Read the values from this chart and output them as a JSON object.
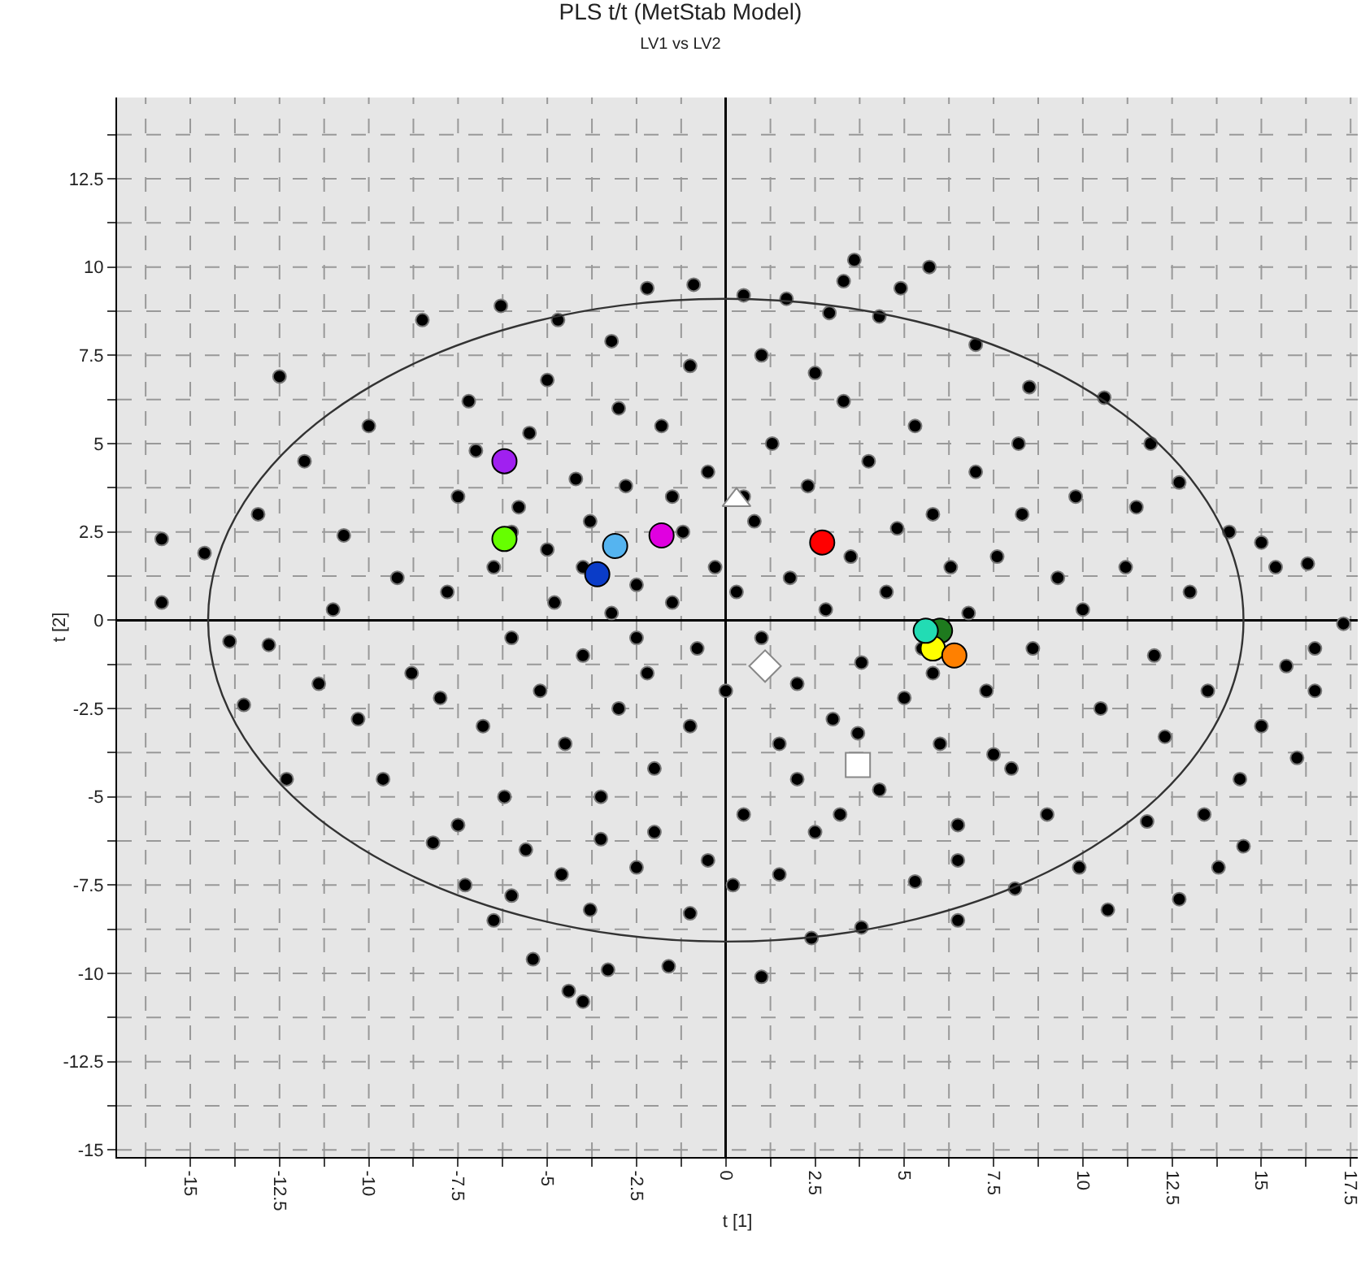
{
  "chart_data": {
    "type": "scatter",
    "title": "PLS t/t (MetStab Model)",
    "subtitle": "LV1 vs LV2",
    "xlabel": "t [1]",
    "ylabel": "t [2]",
    "xlim": [
      -17.05,
      17.7
    ],
    "xticks": [
      {
        "value": -16.25,
        "label": null
      },
      -15,
      {
        "value": -13.75,
        "label": null
      },
      -12.5,
      {
        "value": -11.25,
        "label": null
      },
      -10,
      {
        "value": -8.75,
        "label": null
      },
      -7.5,
      {
        "value": -6.25,
        "label": null
      },
      -5,
      {
        "value": -3.75,
        "label": null
      },
      -2.5,
      {
        "value": -1.25,
        "label": null
      },
      0,
      {
        "value": 1.25,
        "label": null
      },
      2.5,
      {
        "value": 3.75,
        "label": null
      },
      5,
      {
        "value": 6.25,
        "label": null
      },
      7.5,
      {
        "value": 8.75,
        "label": null
      },
      10,
      {
        "value": 11.25,
        "label": null
      },
      12.5,
      {
        "value": 13.75,
        "label": null
      },
      15,
      {
        "value": 16.25,
        "label": null
      },
      17.5
    ],
    "ylim": [
      -15.2,
      14.8
    ],
    "yticks": [
      -15,
      {
        "value": -13.75,
        "label": null
      },
      -12.5,
      {
        "value": -11.25,
        "label": null
      },
      -10,
      {
        "value": -8.75,
        "label": null
      },
      -7.5,
      {
        "value": -6.25,
        "label": null
      },
      -5,
      {
        "value": -3.75,
        "label": null
      },
      -2.5,
      {
        "value": -1.25,
        "label": null
      },
      0,
      {
        "value": 1.25,
        "label": null
      },
      2.5,
      {
        "value": 3.75,
        "label": null
      },
      5,
      {
        "value": 6.25,
        "label": null
      },
      7.5,
      {
        "value": 8.75,
        "label": null
      },
      10,
      {
        "value": 11.25,
        "label": null
      },
      12.5,
      {
        "value": 13.75,
        "label": null
      }
    ],
    "grid": true,
    "marker": "circle",
    "series": [
      {
        "type": "scatter",
        "color": "#000000",
        "x": [
          -15.8,
          -15.8,
          -14.6,
          -13.9,
          -13.5,
          -12.5,
          -12.3,
          -13.1,
          -12.8,
          -11.8,
          -11.4,
          -10.7,
          -10.3,
          -11.0,
          -9.6,
          -10.0,
          -8.5,
          -9.2,
          -8.8,
          -8.2,
          -7.3,
          -6.5,
          -6.3,
          -4.7,
          -3.2,
          -2.2,
          -0.9,
          0.5,
          1.7,
          3.6,
          3.3,
          4.9,
          5.7,
          2.9,
          4.3,
          7.0,
          8.5,
          10.6,
          11.9,
          12.7,
          14.1,
          15.0,
          16.3,
          15.4,
          17.3,
          16.5,
          15.7,
          16.5,
          16.0,
          15.0,
          14.4,
          13.4,
          14.5,
          13.8,
          12.7,
          10.7,
          9.9,
          11.8,
          12.3,
          13.5,
          12.0,
          13.0,
          11.2,
          10.5,
          9.8,
          11.5,
          10.0,
          -4.0,
          -4.4,
          -3.3,
          -1.6,
          1.0,
          2.4,
          3.8,
          5.3,
          6.5,
          8.1,
          -1.0,
          -5.4,
          -6.0,
          -3.8,
          0.2,
          -7.5,
          -2.5,
          -7.5,
          -7.0,
          -6.5,
          -6.0,
          -5.8,
          -5.5,
          -5.2,
          -5.0,
          -4.8,
          -4.5,
          -4.2,
          -4.0,
          -3.8,
          -3.5,
          -3.2,
          -3.0,
          -2.8,
          -2.5,
          -2.2,
          -2.0,
          -1.8,
          -1.5,
          -1.2,
          -1.0,
          -0.8,
          -0.5,
          -0.3,
          0.0,
          0.3,
          0.5,
          0.8,
          1.0,
          1.3,
          1.5,
          1.8,
          2.0,
          2.3,
          2.5,
          2.8,
          3.0,
          3.3,
          3.5,
          3.8,
          4.0,
          4.3,
          4.5,
          4.8,
          5.0,
          5.3,
          5.5,
          5.8,
          6.0,
          6.3,
          6.5,
          6.8,
          7.0,
          7.3,
          7.6,
          8.0,
          8.3,
          8.6,
          9.0,
          9.3,
          -6.8,
          -6.2,
          -5.6,
          -4.6,
          -3.5,
          -2.0,
          -0.5,
          1.5,
          3.2,
          -7.8,
          -8.0,
          -7.2,
          -5.0,
          -3.0,
          -1.0,
          1.0,
          2.5,
          -6.0,
          -4.0,
          -2.5,
          -1.5,
          0.5,
          2.0,
          3.7,
          5.8,
          7.5,
          6.5,
          8.2
        ],
        "values": [
          2.3,
          0.5,
          1.9,
          -0.6,
          -2.4,
          6.9,
          -4.5,
          3.0,
          -0.7,
          4.5,
          -1.8,
          2.4,
          -2.8,
          0.3,
          -4.5,
          5.5,
          8.5,
          1.2,
          -1.5,
          -6.3,
          -7.5,
          -8.5,
          8.9,
          8.5,
          7.9,
          9.4,
          9.5,
          9.2,
          9.1,
          10.2,
          9.6,
          9.4,
          10.0,
          8.7,
          8.6,
          7.8,
          6.6,
          6.3,
          5.0,
          3.9,
          2.5,
          2.2,
          1.6,
          1.5,
          -0.1,
          -0.8,
          -1.3,
          -2.0,
          -3.9,
          -3.0,
          -4.5,
          -5.5,
          -6.4,
          -7.0,
          -7.9,
          -8.2,
          -7.0,
          -5.7,
          -3.3,
          -2.0,
          -1.0,
          0.8,
          1.5,
          -2.5,
          3.5,
          3.2,
          0.3,
          -10.8,
          -10.5,
          -9.9,
          -9.8,
          -10.1,
          -9.0,
          -8.7,
          -7.4,
          -8.5,
          -7.6,
          -8.3,
          -9.6,
          -7.8,
          -8.2,
          -7.5,
          -5.8,
          -7.0,
          3.5,
          4.8,
          1.5,
          -0.5,
          3.2,
          5.3,
          -2.0,
          2.0,
          0.5,
          -3.5,
          4.0,
          -1.0,
          2.8,
          -5.0,
          0.2,
          -2.5,
          3.8,
          1.0,
          -1.5,
          -4.2,
          5.5,
          0.5,
          2.5,
          -3.0,
          -0.8,
          4.2,
          1.5,
          -2.0,
          0.8,
          -5.5,
          2.8,
          -0.5,
          5.0,
          -3.5,
          1.2,
          -1.8,
          3.8,
          -6.0,
          0.3,
          -2.8,
          6.2,
          1.8,
          -1.2,
          4.5,
          -4.8,
          0.8,
          2.6,
          -2.2,
          5.5,
          -0.8,
          3.0,
          -3.5,
          1.5,
          -5.8,
          0.2,
          4.2,
          -2.0,
          1.8,
          -4.2,
          3.0,
          -0.8,
          -5.5,
          1.2,
          -3.0,
          -5.0,
          -6.5,
          -7.2,
          -6.2,
          -6.0,
          -6.8,
          -7.2,
          -5.5,
          0.8,
          -2.2,
          6.2,
          6.8,
          6.0,
          7.2,
          7.5,
          7.0,
          2.5,
          1.5,
          -0.5,
          3.5,
          3.5,
          -4.5,
          -3.2,
          -1.5,
          -3.8,
          -6.8,
          5.0
        ]
      },
      {
        "type": "scatter",
        "marker": "circle",
        "color": "#a020f0",
        "x": [
          -6.2
        ],
        "values": [
          4.5
        ]
      },
      {
        "type": "scatter",
        "marker": "circle",
        "color": "#66ff00",
        "x": [
          -6.2
        ],
        "values": [
          2.3
        ]
      },
      {
        "type": "scatter",
        "marker": "circle",
        "color": "#55b4f0",
        "x": [
          -3.1
        ],
        "values": [
          2.1
        ]
      },
      {
        "type": "scatter",
        "marker": "circle",
        "color": "#0a3cc8",
        "x": [
          -3.6
        ],
        "values": [
          1.3
        ]
      },
      {
        "type": "scatter",
        "marker": "circle",
        "color": "#e000e0",
        "x": [
          -1.8
        ],
        "values": [
          2.4
        ]
      },
      {
        "type": "scatter",
        "marker": "circle",
        "color": "#ff0000",
        "x": [
          2.7
        ],
        "values": [
          2.2
        ]
      },
      {
        "type": "scatter",
        "marker": "circle",
        "color": "#1e7a1e",
        "x": [
          6.0
        ],
        "values": [
          -0.3
        ]
      },
      {
        "type": "scatter",
        "marker": "circle",
        "color": "#ffff00",
        "x": [
          5.8
        ],
        "values": [
          -0.8
        ]
      },
      {
        "type": "scatter",
        "marker": "circle",
        "color": "#ff8000",
        "x": [
          6.4
        ],
        "values": [
          -1.0
        ]
      },
      {
        "type": "scatter",
        "marker": "circle",
        "color": "#22dcb4",
        "x": [
          5.6
        ],
        "values": [
          -0.3
        ]
      },
      {
        "type": "scatter",
        "marker": "triangle",
        "color": "#ffffff",
        "x": [
          0.3
        ],
        "values": [
          3.4
        ]
      },
      {
        "type": "scatter",
        "marker": "diamond",
        "color": "#ffffff",
        "x": [
          1.1
        ],
        "values": [
          -1.3
        ]
      },
      {
        "type": "scatter",
        "marker": "square",
        "color": "#ffffff",
        "x": [
          3.7
        ],
        "values": [
          -4.1
        ]
      }
    ]
  }
}
